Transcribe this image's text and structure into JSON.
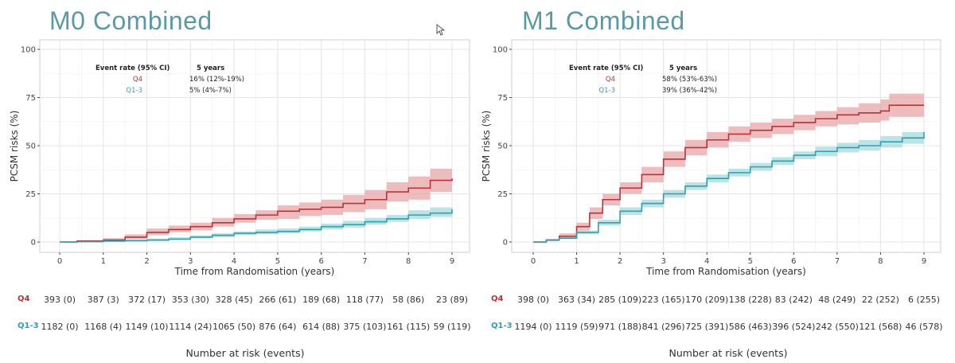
{
  "colors": {
    "q4": "#b5353a",
    "q13": "#2ba2b0",
    "q4_band": "#e9a5a8",
    "q13_band": "#a6d9dd",
    "title": "#5a9aa6"
  },
  "chart_data": [
    {
      "type": "line",
      "title": "M0 Combined",
      "xlabel": "Time from Randomisation (years)",
      "ylabel": "PCSM risks (%)",
      "xlim": [
        0,
        9
      ],
      "ylim": [
        0,
        100
      ],
      "xticks": [
        "0",
        "1",
        "2",
        "3",
        "4",
        "5",
        "6",
        "7",
        "8",
        "9"
      ],
      "yticks": [
        "0",
        "25",
        "50",
        "75",
        "100"
      ],
      "grid": true,
      "legend": {
        "header_label": "Event rate (95% CI)",
        "header_value": "5 years",
        "rows": [
          {
            "name": "Q4",
            "value": "16% (12%-19%)"
          },
          {
            "name": "Q1-3",
            "value": "5% (4%-7%)"
          }
        ]
      },
      "series": [
        {
          "name": "Q4",
          "x": [
            0,
            0.4,
            1,
            1.5,
            2,
            2.5,
            3,
            3.5,
            4,
            4.5,
            5,
            5.5,
            6,
            6.5,
            7,
            7.5,
            8,
            8.5,
            9
          ],
          "y": [
            0,
            0.5,
            1,
            2.5,
            5,
            6.5,
            8,
            10,
            12,
            14,
            16,
            17,
            18,
            20,
            22,
            26,
            28,
            32,
            33
          ],
          "lower": [
            0,
            0.2,
            0.5,
            1.5,
            3.5,
            5,
            6,
            8,
            10,
            11.5,
            12,
            13.5,
            14,
            15.5,
            17,
            21,
            22,
            26,
            27
          ],
          "upper": [
            0,
            1,
            2,
            4,
            7,
            8.5,
            10,
            12.5,
            14.5,
            16.5,
            19,
            20.5,
            22,
            24.5,
            27,
            31,
            34,
            38,
            39
          ]
        },
        {
          "name": "Q1-3",
          "x": [
            0,
            0.4,
            1,
            1.5,
            2,
            2.5,
            3,
            3.5,
            4,
            4.5,
            5,
            5.5,
            6,
            6.5,
            7,
            7.5,
            8,
            8.5,
            9
          ],
          "y": [
            0,
            0.2,
            0.5,
            0.7,
            1,
            1.5,
            2.5,
            3.5,
            4.5,
            5,
            5.5,
            6.5,
            8,
            9,
            10.5,
            12,
            14,
            15,
            17
          ],
          "lower": [
            0,
            0,
            0.2,
            0.3,
            0.5,
            1,
            2,
            2.5,
            3.5,
            4,
            4.5,
            5.5,
            6.5,
            7.5,
            9,
            10.5,
            12,
            13,
            14.5
          ],
          "upper": [
            0,
            0.5,
            1,
            1.2,
            1.8,
            2.5,
            3.5,
            4.5,
            5.5,
            6.5,
            7,
            8,
            9.5,
            11,
            12.5,
            14,
            16.5,
            18,
            20
          ]
        }
      ],
      "risk_table": {
        "rows": [
          {
            "label": "Q4",
            "values": [
              "393 (0)",
              "387 (3)",
              "372 (17)",
              "353 (30)",
              "328 (45)",
              "266 (61)",
              "189 (68)",
              "118 (77)",
              "58 (86)",
              "23 (89)"
            ]
          },
          {
            "label": "Q1-3",
            "values": [
              "1182 (0)",
              "1168 (4)",
              "1149 (10)",
              "1114 (24)",
              "1065 (50)",
              "876 (64)",
              "614 (88)",
              "375 (103)",
              "161 (115)",
              "59 (119)"
            ]
          }
        ],
        "footer": "Number at risk (events)"
      }
    },
    {
      "type": "line",
      "title": "M1 Combined",
      "xlabel": "Time from Randomisation (years)",
      "ylabel": "PCSM risks (%)",
      "xlim": [
        0,
        9
      ],
      "ylim": [
        0,
        100
      ],
      "xticks": [
        "0",
        "1",
        "2",
        "3",
        "4",
        "5",
        "6",
        "7",
        "8",
        "9"
      ],
      "yticks": [
        "0",
        "25",
        "50",
        "75",
        "100"
      ],
      "grid": true,
      "legend": {
        "header_label": "Event rate (95% CI)",
        "header_value": "5 years",
        "rows": [
          {
            "name": "Q4",
            "value": "58% (53%-63%)"
          },
          {
            "name": "Q1-3",
            "value": "39% (36%-42%)"
          }
        ]
      },
      "series": [
        {
          "name": "Q4",
          "x": [
            0,
            0.3,
            0.6,
            1,
            1.3,
            1.6,
            2,
            2.5,
            3,
            3.5,
            4,
            4.5,
            5,
            5.5,
            6,
            6.5,
            7,
            7.5,
            8,
            8.2,
            9
          ],
          "y": [
            0,
            1,
            3,
            8,
            15,
            22,
            28,
            35,
            43,
            49,
            53,
            56,
            58,
            60,
            62,
            64,
            66,
            67,
            68,
            71,
            71
          ],
          "lower": [
            0,
            0.5,
            2,
            6,
            12,
            19,
            25,
            31,
            39,
            45,
            49,
            52,
            54,
            56,
            58,
            60,
            61,
            62,
            63,
            65,
            65
          ],
          "upper": [
            0,
            1.5,
            4.5,
            10,
            18,
            25,
            31,
            39,
            47,
            53,
            57,
            60,
            62,
            64,
            66,
            68,
            70,
            72,
            74,
            77,
            77
          ]
        },
        {
          "name": "Q1-3",
          "x": [
            0,
            0.3,
            0.6,
            1,
            1.5,
            2,
            2.5,
            3,
            3.5,
            4,
            4.5,
            5,
            5.5,
            6,
            6.5,
            7,
            7.5,
            8,
            8.5,
            9
          ],
          "y": [
            0,
            1,
            2,
            5,
            10,
            16,
            20,
            25,
            29,
            33,
            36,
            39,
            42,
            45,
            47,
            49,
            50,
            52,
            54,
            57
          ],
          "lower": [
            0,
            0.5,
            1.5,
            4,
            8.5,
            14,
            18,
            23,
            27,
            31,
            34,
            37,
            40,
            43,
            44.5,
            46.5,
            47.5,
            49,
            51,
            53
          ],
          "upper": [
            0,
            1.5,
            2.5,
            6,
            11.5,
            18,
            22,
            27,
            31,
            35,
            38,
            41,
            44,
            47,
            49.5,
            51.5,
            53,
            55,
            57,
            60
          ]
        }
      ],
      "risk_table": {
        "rows": [
          {
            "label": "Q4",
            "values": [
              "398 (0)",
              "363 (34)",
              "285 (109)",
              "223 (165)",
              "170 (209)",
              "138 (228)",
              "83 (242)",
              "48 (249)",
              "22 (252)",
              "6 (255)"
            ]
          },
          {
            "label": "Q1-3",
            "values": [
              "1194 (0)",
              "1119 (59)",
              "971 (188)",
              "841 (296)",
              "725 (391)",
              "586 (463)",
              "396 (524)",
              "242 (550)",
              "121 (568)",
              "46 (578)"
            ]
          }
        ],
        "footer": "Number at risk (events)"
      }
    }
  ]
}
